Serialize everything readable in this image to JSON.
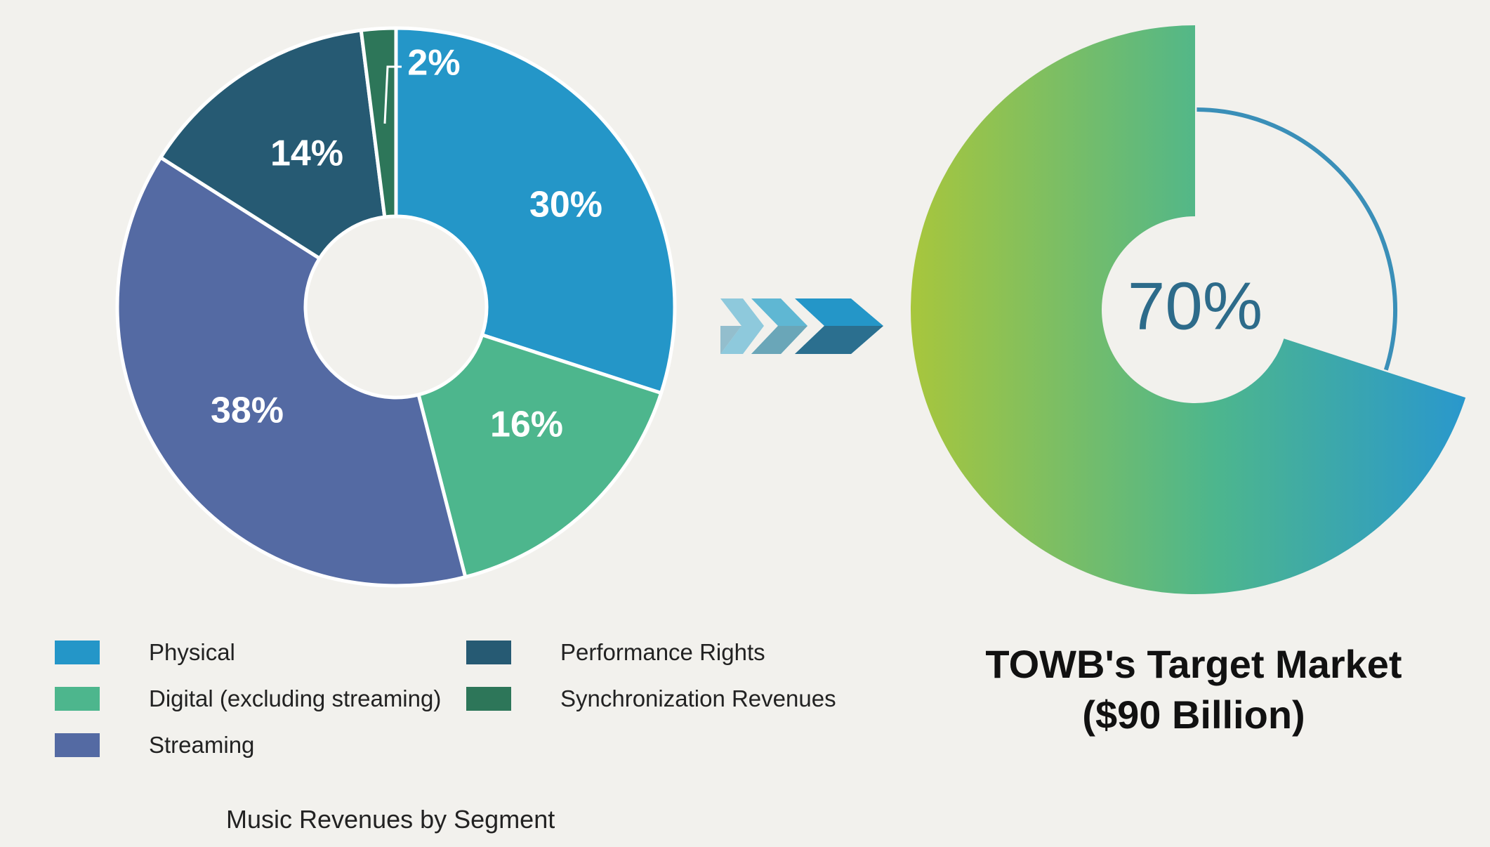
{
  "colors": {
    "physical": "#2496c8",
    "digital": "#4db68d",
    "streaming": "#546aa3",
    "performance": "#265a73",
    "sync": "#2d7659",
    "ring_outline": "#3a8fb8",
    "center_text": "#2d6b8a",
    "gradient_start": "#a8c63c",
    "gradient_mid": "#4db68d",
    "gradient_end": "#2a98cc"
  },
  "chart_data": [
    {
      "type": "pie",
      "style": "donut",
      "title": "Music Revenues by Segment",
      "slices": [
        {
          "key": "physical",
          "name": "Physical",
          "value": 30,
          "label": "30%"
        },
        {
          "key": "digital",
          "name": "Digital (excluding streaming)",
          "value": 16,
          "label": "16%"
        },
        {
          "key": "streaming",
          "name": "Streaming",
          "value": 38,
          "label": "38%"
        },
        {
          "key": "performance",
          "name": "Performance Rights",
          "value": 14,
          "label": "14%"
        },
        {
          "key": "sync",
          "name": "Synchronization Revenues",
          "value": 2,
          "label": "2%"
        }
      ],
      "legend_placement": "bottom"
    },
    {
      "type": "pie",
      "style": "donut",
      "value": 70,
      "label": "70%",
      "title": "TOWB's Target Market",
      "subtitle": "($90 Billion)"
    }
  ],
  "legend": {
    "col1": [
      "Physical",
      "Digital (excluding streaming)",
      "Streaming"
    ],
    "col2": [
      "Performance Rights",
      "Synchronization Revenues"
    ]
  }
}
